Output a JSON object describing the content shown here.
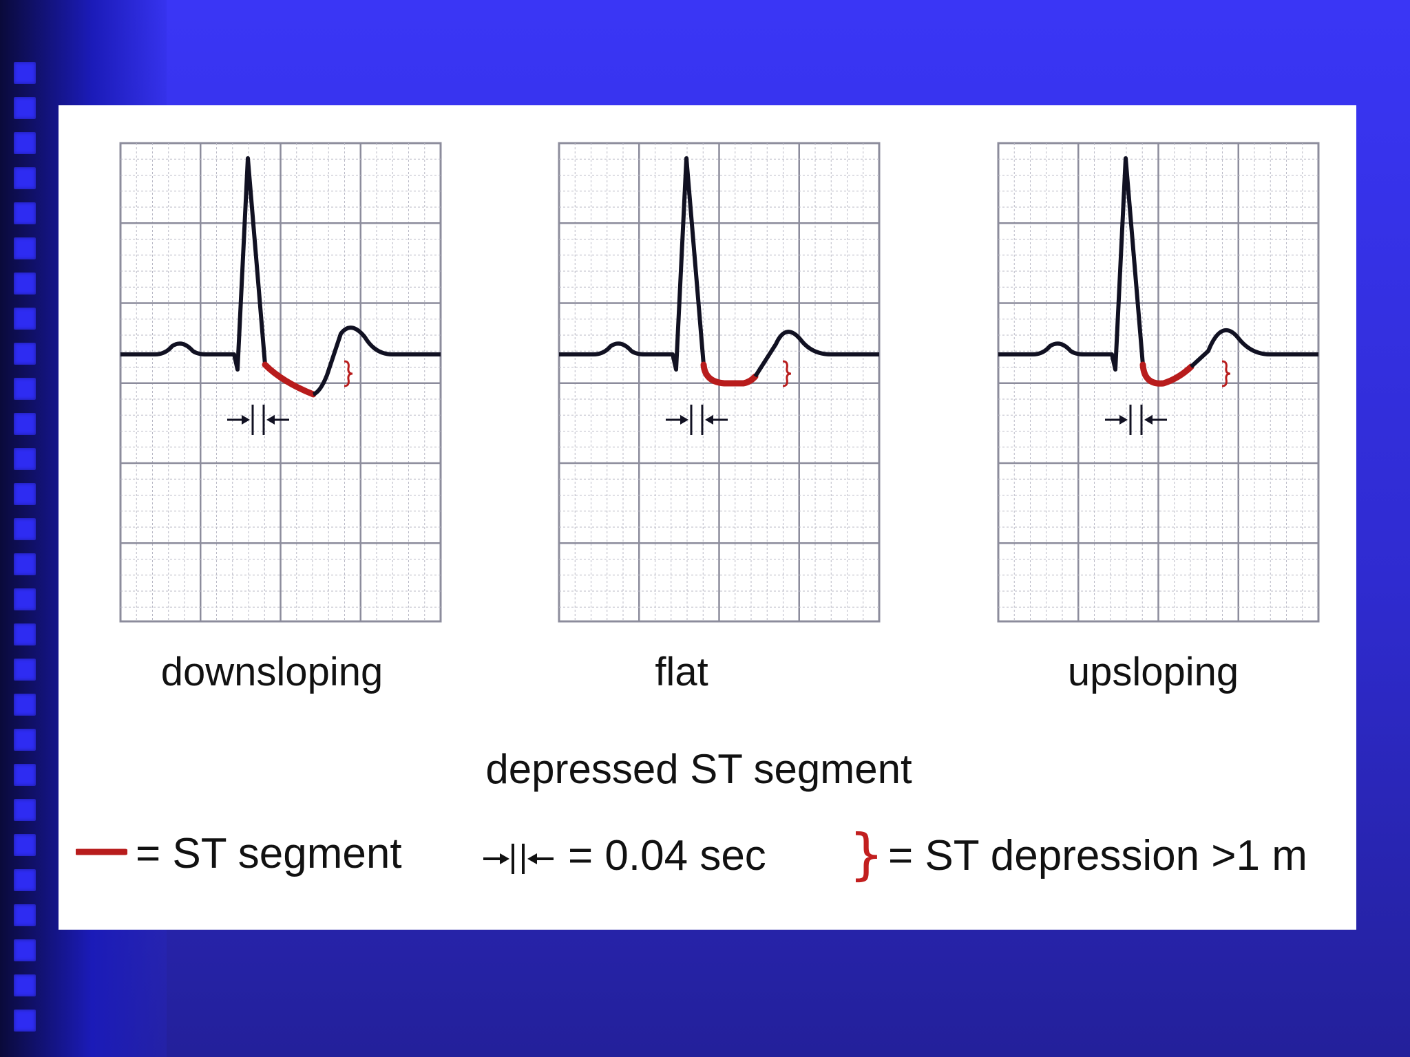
{
  "panels": [
    {
      "id": "downsloping",
      "label": "downsloping"
    },
    {
      "id": "flat",
      "label": "flat"
    },
    {
      "id": "upsloping",
      "label": "upsloping"
    }
  ],
  "caption": "depressed ST segment",
  "legend": {
    "st_segment": "= ST segment",
    "interval": "= 0.04 sec",
    "depression": "= ST depression >1 m"
  },
  "colors": {
    "trace": "#111122",
    "st_segment": "#b81c1c",
    "grid_major": "#8c8c9c",
    "grid_minor": "#b9b9c6",
    "background": "#3a36f6"
  }
}
